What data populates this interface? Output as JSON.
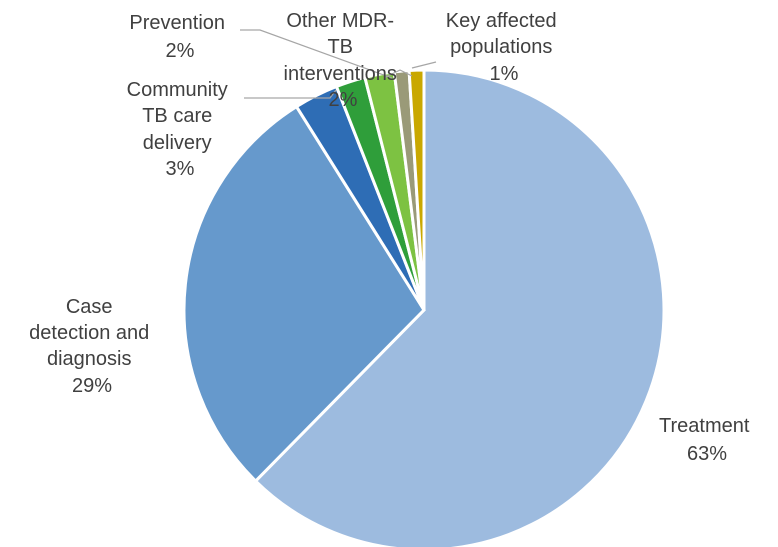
{
  "chart_data": {
    "type": "pie",
    "title": "",
    "slices": [
      {
        "label": [
          "Treatment"
        ],
        "value_label": "63%",
        "value": 63,
        "color": "#9dbbdf"
      },
      {
        "label": [
          "Case",
          "detection and",
          "diagnosis"
        ],
        "value_label": "29%",
        "value": 29,
        "color": "#6699cc"
      },
      {
        "label": [
          "Community",
          "TB care",
          "delivery"
        ],
        "value_label": "3%",
        "value": 3,
        "color": "#2e6db5"
      },
      {
        "label": [
          "Other MDR-",
          "TB",
          "interventions"
        ],
        "value_label": "2%",
        "value": 2,
        "color": "#2f9e3a"
      },
      {
        "label": [
          "Prevention"
        ],
        "value_label": "2%",
        "value": 2,
        "color": "#7dc242"
      },
      {
        "label": [
          "Key affected",
          "populations"
        ],
        "value_label": "1%",
        "value": 1,
        "color": "#9a9a78"
      },
      {
        "label": [],
        "value_label": "",
        "value": 1,
        "color": "#c9a800"
      }
    ],
    "legend": "none"
  }
}
